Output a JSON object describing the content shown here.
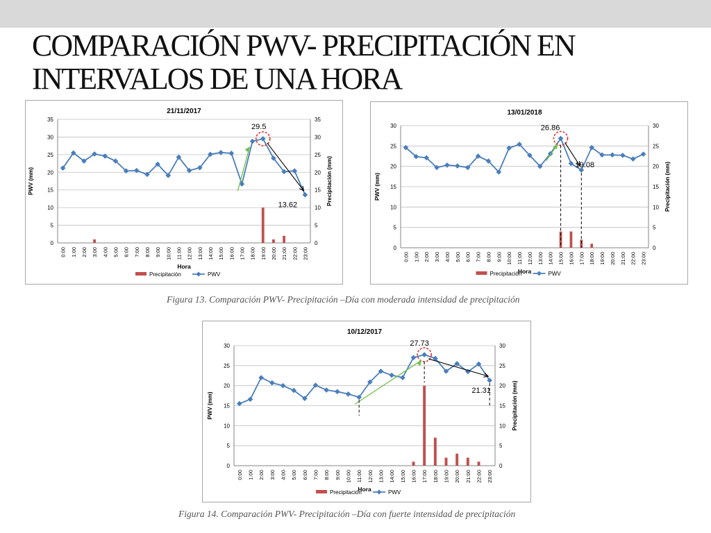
{
  "slide": {
    "title": "COMPARACIÓN PWV- PRECIPITACIÓN EN INTERVALOS DE UNA HORA",
    "caption_13": "Figura 13. Comparación PWV- Precipitación –Día con moderada intensidad de precipitación",
    "caption_14": "Figura 14. Comparación PWV- Precipitación –Día con fuerte intensidad de precipitación"
  },
  "colors": {
    "pwv": "#4a7ebb",
    "precip": "#c0504d",
    "peak_circle": "#e0302a",
    "arrow_up": "#6fc04a",
    "arrow_down": "#000000"
  },
  "chart_data": [
    {
      "type": "bar+line",
      "title": "21/11/2017",
      "xlabel": "Hora",
      "ylabel": "PWV (mm)",
      "y2label": "Precipitación (mm)",
      "categories": [
        "0:00",
        "1:00",
        "2:00",
        "3:00",
        "4:00",
        "5:00",
        "6:00",
        "7:00",
        "8:00",
        "9:00",
        "10:00",
        "11:00",
        "12:00",
        "13:00",
        "14:00",
        "15:00",
        "16:00",
        "17:00",
        "18:00",
        "19:00",
        "20:00",
        "21:00",
        "22:00",
        "23:00"
      ],
      "ylim": [
        0,
        35
      ],
      "y2lim": [
        0,
        35
      ],
      "yticks": [
        0,
        5,
        10,
        15,
        20,
        25,
        30,
        35
      ],
      "series": [
        {
          "name": "Precipitación",
          "type": "bar",
          "axis": "right",
          "values": [
            0,
            0,
            0,
            1,
            0,
            0,
            0,
            0,
            0,
            0,
            0,
            0,
            0,
            0,
            0,
            0,
            0,
            0,
            0,
            10,
            1,
            2,
            0,
            0
          ]
        },
        {
          "name": "PWV",
          "type": "line",
          "axis": "left",
          "values": [
            21.2,
            25.5,
            23.2,
            25.2,
            24.6,
            23.2,
            20.4,
            20.5,
            19.4,
            22.3,
            19.1,
            24.3,
            20.5,
            21.3,
            25.1,
            25.6,
            25.4,
            16.7,
            28.8,
            29.5,
            24.0,
            20.2,
            20.4,
            13.62
          ]
        }
      ],
      "annotations": {
        "peak_label": "29.5",
        "end_label": "13.62",
        "peak_index": 19,
        "end_index": 23
      },
      "legend": "bottom"
    },
    {
      "type": "bar+line",
      "title": "13/01/2018",
      "xlabel": "Hora",
      "ylabel": "PWV (mm)",
      "y2label": "Precipitación (mm)",
      "categories": [
        "0:00",
        "1:00",
        "2:00",
        "3:00",
        "4:00",
        "5:00",
        "6:00",
        "7:00",
        "8:00",
        "9:00",
        "10:00",
        "11:00",
        "12:00",
        "13:00",
        "14:00",
        "15:00",
        "16:00",
        "17:00",
        "18:00",
        "19:00",
        "20:00",
        "21:00",
        "22:00",
        "23:00"
      ],
      "ylim": [
        0,
        30
      ],
      "y2lim": [
        0,
        30
      ],
      "yticks": [
        0,
        5,
        10,
        15,
        20,
        25,
        30
      ],
      "series": [
        {
          "name": "Precipitación",
          "type": "bar",
          "axis": "right",
          "values": [
            0,
            0,
            0,
            0,
            0,
            0,
            0,
            0,
            0,
            0,
            0,
            0,
            0,
            0,
            0,
            4,
            4,
            2,
            1,
            0,
            0,
            0,
            0,
            0
          ]
        },
        {
          "name": "PWV",
          "type": "line",
          "axis": "left",
          "values": [
            24.6,
            22.4,
            22.1,
            19.7,
            20.3,
            20.1,
            19.7,
            22.5,
            21.3,
            18.6,
            24.5,
            25.4,
            22.7,
            20.0,
            23.1,
            26.86,
            20.7,
            19.08,
            24.6,
            22.8,
            22.8,
            22.7,
            21.8,
            23.0
          ]
        }
      ],
      "annotations": {
        "peak_label": "26.86",
        "end_label": "19.08",
        "peak_index": 15,
        "end_index": 17
      },
      "legend": "bottom"
    },
    {
      "type": "bar+line",
      "title": "10/12/2017",
      "xlabel": "Hora",
      "ylabel": "PWV (mm)",
      "y2label": "Precipitación (mm)",
      "categories": [
        "0:00",
        "1:00",
        "2:00",
        "3:00",
        "4:00",
        "5:00",
        "6:00",
        "7:00",
        "8:00",
        "9:00",
        "10:00",
        "11:00",
        "12:00",
        "13:00",
        "14:00",
        "15:00",
        "16:00",
        "17:00",
        "18:00",
        "19:00",
        "20:00",
        "21:00",
        "22:00",
        "23:00"
      ],
      "ylim": [
        0,
        30
      ],
      "y2lim": [
        0,
        30
      ],
      "yticks": [
        0,
        5,
        10,
        15,
        20,
        25,
        30
      ],
      "series": [
        {
          "name": "Precipitación",
          "type": "bar",
          "axis": "right",
          "values": [
            0,
            0,
            0,
            0,
            0,
            0,
            0,
            0,
            0,
            0,
            0,
            0,
            0,
            0,
            0,
            0,
            1,
            20,
            7,
            2,
            3,
            2,
            1,
            0
          ]
        },
        {
          "name": "PWV",
          "type": "line",
          "axis": "left",
          "values": [
            15.5,
            16.6,
            22.0,
            20.7,
            20.0,
            18.8,
            16.8,
            20.1,
            18.9,
            18.5,
            17.9,
            17.1,
            20.9,
            23.6,
            22.6,
            22.0,
            27.0,
            27.73,
            26.8,
            23.6,
            25.5,
            23.5,
            25.4,
            21.31
          ]
        }
      ],
      "annotations": {
        "peak_label": "27.73",
        "end_label": "21.31",
        "peak_index": 17,
        "end_index": 23
      },
      "legend": "bottom"
    }
  ]
}
